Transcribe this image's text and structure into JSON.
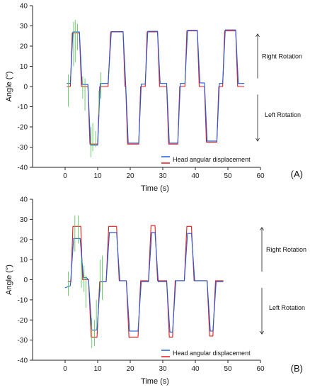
{
  "chart_data": [
    {
      "type": "line",
      "panel_label": "(A)",
      "xlabel": "Time (s)",
      "ylabel": "Angle (°)",
      "xlim": [
        -10,
        60
      ],
      "ylim": [
        -40,
        40
      ],
      "x_ticks": [
        "0",
        "10",
        "20",
        "30",
        "40",
        "50",
        "60"
      ],
      "y_ticks": [
        "40",
        "30",
        "20",
        "10",
        "0",
        "-10",
        "-20",
        "-30",
        "-40"
      ],
      "legend": {
        "entries": [
          "Head angular displacement"
        ],
        "position": "bottom-right"
      },
      "annotations": {
        "right": "Right Rotation",
        "left": "Left Rotation"
      },
      "series": [
        {
          "color": "#e8191c",
          "x": [
            0.5,
            1.6,
            2.2,
            4.4,
            5.0,
            6.0,
            7.0,
            7.6,
            10.0,
            10.6,
            13.2,
            14.0,
            17.8,
            18.4,
            18.6,
            19.2,
            22.6,
            23.2,
            24.6,
            25.2,
            28.4,
            29.0,
            31.2,
            31.8,
            34.6,
            35.2,
            36.8,
            37.4,
            40.6,
            41.2,
            42.8,
            43.4,
            46.6,
            47.2,
            48.4,
            49.0,
            52.4,
            53.0,
            55.0
          ],
          "y": [
            0,
            0,
            26.5,
            26.5,
            0,
            0,
            0,
            -28.5,
            -28.5,
            0,
            0,
            27,
            27,
            0,
            0,
            -28.5,
            -28.5,
            0,
            0,
            27,
            27,
            0,
            0,
            -28.5,
            -28.5,
            0,
            0,
            27.5,
            27.5,
            0,
            0,
            -27.5,
            -27.5,
            0,
            0,
            27.5,
            27.5,
            0,
            0
          ]
        },
        {
          "color": "#1f5bd6",
          "x": [
            0.5,
            1.6,
            2.4,
            4.4,
            5.2,
            6.0,
            7.0,
            7.8,
            10.0,
            10.8,
            13.2,
            14.2,
            17.8,
            18.6,
            18.6,
            19.4,
            22.6,
            23.4,
            24.6,
            25.4,
            28.4,
            29.2,
            31.2,
            32.0,
            34.6,
            35.4,
            36.8,
            37.6,
            40.6,
            41.4,
            42.8,
            43.6,
            46.6,
            47.4,
            48.4,
            49.2,
            52.4,
            53.2,
            55.0
          ],
          "y": [
            1.5,
            1.5,
            27,
            27,
            1,
            1,
            1,
            -29,
            -29,
            1.5,
            1.5,
            27.2,
            27.2,
            1.2,
            1.2,
            -28,
            -28,
            1.2,
            1.2,
            27.3,
            27.3,
            1.5,
            1.5,
            -28,
            -28,
            1.5,
            1.5,
            27.8,
            27.8,
            1.8,
            1.8,
            -27,
            -27,
            1.5,
            1.5,
            28,
            28,
            1.5,
            1.5
          ]
        },
        {
          "color": "#5cc85c",
          "spikes": [
            [
              1.0,
              -10,
              6
            ],
            [
              2.6,
              10,
              32
            ],
            [
              3.1,
              12,
              33
            ],
            [
              3.8,
              18,
              31
            ],
            [
              5.4,
              -6,
              5
            ],
            [
              6.1,
              -12,
              4
            ],
            [
              7.9,
              -35,
              -20
            ],
            [
              8.5,
              -32,
              -18
            ],
            [
              9.4,
              -30,
              -22
            ],
            [
              10.4,
              -14,
              -2
            ],
            [
              11.0,
              -6,
              7
            ]
          ]
        }
      ]
    },
    {
      "type": "line",
      "panel_label": "(B)",
      "xlabel": "Time (s)",
      "ylabel": "Angle (°)",
      "xlim": [
        -10,
        60
      ],
      "ylim": [
        -40,
        40
      ],
      "x_ticks": [
        "0",
        "10",
        "20",
        "30",
        "40",
        "50",
        "60"
      ],
      "y_ticks": [
        "40",
        "30",
        "20",
        "10",
        "0",
        "-10",
        "-20",
        "-30",
        "-40"
      ],
      "legend": {
        "entries": [
          "Head angular displacement"
        ],
        "position": "bottom-right"
      },
      "annotations": {
        "right": "Right Rotation",
        "left": "Left Rotation"
      },
      "series": [
        {
          "color": "#e8191c",
          "x": [
            0.8,
            1.8,
            2.4,
            4.8,
            5.4,
            6.6,
            7.2,
            8.0,
            9.8,
            10.6,
            12.6,
            13.4,
            15.8,
            16.6,
            18.8,
            19.6,
            22.4,
            23.2,
            25.6,
            26.4,
            27.6,
            28.4,
            31.2,
            32.0,
            33.0,
            33.8,
            36.6,
            37.4,
            38.8,
            39.6,
            43.6,
            44.4,
            45.4,
            46.2,
            48.6
          ],
          "y": [
            -1,
            -1,
            26.5,
            26.5,
            0,
            0,
            0,
            -28.5,
            -28.5,
            -1,
            -1,
            26.5,
            26.5,
            -0.5,
            -0.5,
            -28.5,
            -28.5,
            -0.5,
            -0.5,
            27,
            27,
            -0.5,
            -0.5,
            -28.5,
            -28.5,
            -0.5,
            -0.5,
            26.5,
            26.5,
            -0.5,
            -0.5,
            -28,
            -28,
            -0.5,
            -0.5
          ]
        },
        {
          "color": "#1f5bd6",
          "x": [
            0,
            1.6,
            2.6,
            4.6,
            5.6,
            6.6,
            7.2,
            8.2,
            9.8,
            10.8,
            12.6,
            13.6,
            15.8,
            16.8,
            18.8,
            19.8,
            22.4,
            23.4,
            25.6,
            26.6,
            27.6,
            28.6,
            31.2,
            32.2,
            33.0,
            34.0,
            36.6,
            37.6,
            38.8,
            39.8,
            43.6,
            44.6,
            45.4,
            46.4,
            48.6
          ],
          "y": [
            -4,
            -3,
            20.5,
            20.5,
            1,
            1,
            0,
            -25,
            -25,
            -1,
            -1,
            23.5,
            23.5,
            -0.5,
            -0.5,
            -25.5,
            -25.5,
            -1,
            -1,
            23.5,
            23.5,
            -1,
            -1,
            -26,
            -26,
            -0.5,
            -0.5,
            23,
            23,
            -0.5,
            -0.5,
            -25.5,
            -25.5,
            -1,
            -1
          ]
        },
        {
          "color": "#5cc85c",
          "spikes": [
            [
              1.0,
              -8,
              4
            ],
            [
              3.0,
              14,
              32
            ],
            [
              4.0,
              18,
              32
            ],
            [
              5.0,
              -4,
              10
            ],
            [
              5.8,
              -6,
              7
            ],
            [
              6.4,
              -14,
              2
            ],
            [
              8.2,
              -34,
              -19
            ],
            [
              9.0,
              -33,
              -20
            ],
            [
              9.6,
              -25,
              -10
            ],
            [
              10.8,
              -6,
              10
            ],
            [
              11.4,
              -10,
              12
            ]
          ]
        }
      ]
    }
  ]
}
